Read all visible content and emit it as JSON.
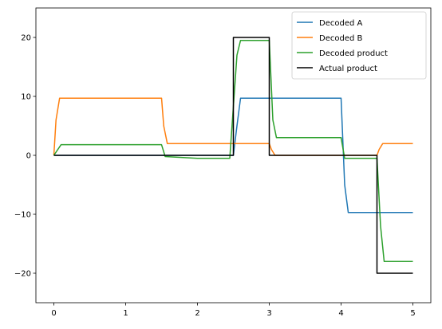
{
  "chart_data": {
    "type": "line",
    "title": "",
    "xlabel": "",
    "ylabel": "",
    "xlim": [
      -0.25,
      5.25
    ],
    "ylim": [
      -25,
      25
    ],
    "xticks": [
      0,
      1,
      2,
      3,
      4,
      5
    ],
    "yticks": [
      -20,
      -10,
      0,
      10,
      20
    ],
    "xtick_labels": [
      "0",
      "1",
      "2",
      "3",
      "4",
      "5"
    ],
    "ytick_labels": [
      "−20",
      "−10",
      "0",
      "10",
      "20"
    ],
    "grid": false,
    "legend_position": "top-right",
    "series": [
      {
        "name": "Decoded A",
        "color": "#1f77b4",
        "x": [
          0,
          0.5,
          1.0,
          1.5,
          2.0,
          2.5,
          2.55,
          2.6,
          3.0,
          3.5,
          4.0,
          4.05,
          4.1,
          4.5,
          5.0
        ],
        "y": [
          0,
          0,
          0,
          0,
          0,
          0,
          5,
          9.7,
          9.7,
          9.7,
          9.7,
          -5,
          -9.7,
          -9.7,
          -9.7
        ]
      },
      {
        "name": "Decoded B",
        "color": "#ff7f0e",
        "x": [
          0,
          0.03,
          0.08,
          0.5,
          1.0,
          1.5,
          1.53,
          1.58,
          2.0,
          2.5,
          3.0,
          3.03,
          3.08,
          3.5,
          4.0,
          4.5,
          4.53,
          4.58,
          5.0
        ],
        "y": [
          0,
          6,
          9.7,
          9.7,
          9.7,
          9.7,
          5,
          2,
          2,
          2,
          2,
          1,
          0,
          0,
          0,
          0,
          1,
          2,
          2
        ]
      },
      {
        "name": "Decoded product",
        "color": "#2ca02c",
        "x": [
          0,
          0.1,
          0.5,
          1.0,
          1.5,
          1.55,
          2.0,
          2.45,
          2.55,
          2.6,
          2.9,
          3.0,
          3.05,
          3.1,
          3.5,
          4.0,
          4.05,
          4.5,
          4.55,
          4.6,
          5.0
        ],
        "y": [
          0,
          1.8,
          1.8,
          1.8,
          1.8,
          -0.2,
          -0.5,
          -0.5,
          17,
          19.5,
          19.5,
          19.5,
          6,
          3,
          3,
          3,
          -0.5,
          -0.5,
          -12,
          -18,
          -18
        ]
      },
      {
        "name": "Actual product",
        "color": "#000000",
        "x": [
          0,
          2.5,
          2.5,
          3.0,
          3.0,
          4.5,
          4.5,
          5.0
        ],
        "y": [
          0,
          0,
          20,
          20,
          0,
          0,
          -20,
          -20
        ]
      }
    ]
  }
}
